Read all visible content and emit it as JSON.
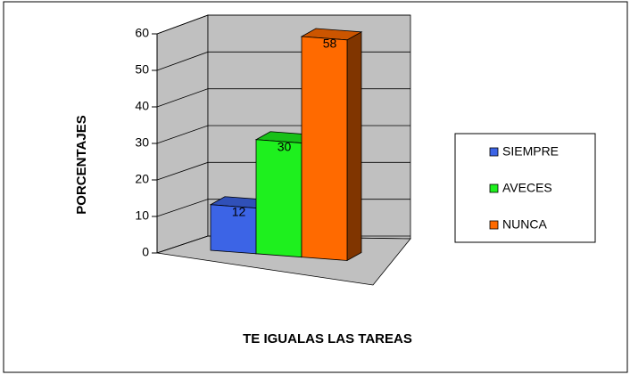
{
  "chart_data": {
    "type": "bar3d",
    "y_axis_label": "PORCENTAJES",
    "x_axis_label": "TE IGUALAS LAS TAREAS",
    "series": [
      {
        "name": "SIEMPRE",
        "color": "#3c64e6",
        "values": [
          12
        ]
      },
      {
        "name": "AVECES",
        "color": "#1ef01e",
        "values": [
          30
        ]
      },
      {
        "name": "NUNCA",
        "color": "#ff6a00",
        "values": [
          58
        ]
      }
    ],
    "ylim": [
      0,
      60
    ],
    "yticks": [
      0,
      10,
      20,
      30,
      40,
      50,
      60
    ],
    "grid": true,
    "legend": "right"
  }
}
